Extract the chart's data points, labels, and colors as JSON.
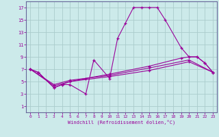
{
  "background_color": "#cceaea",
  "grid_color": "#aacccc",
  "line_color": "#990099",
  "spine_color": "#666699",
  "xlim": [
    -0.5,
    23.5
  ],
  "ylim": [
    0,
    18
  ],
  "xticks": [
    0,
    1,
    2,
    3,
    4,
    5,
    6,
    7,
    8,
    9,
    10,
    11,
    12,
    13,
    14,
    15,
    16,
    17,
    18,
    19,
    20,
    21,
    22,
    23
  ],
  "yticks": [
    1,
    3,
    5,
    7,
    9,
    11,
    13,
    15,
    17
  ],
  "xlabel": "Windchill (Refroidissement éolien,°C)",
  "series": [
    {
      "x": [
        0,
        1,
        3,
        4,
        5,
        7,
        8,
        10,
        11,
        12,
        13,
        14,
        15,
        16,
        17,
        19,
        20,
        21,
        22,
        23
      ],
      "y": [
        7,
        6.5,
        4,
        4.5,
        4.5,
        3,
        8.5,
        5.5,
        12,
        14.5,
        17,
        17,
        17,
        17,
        15,
        10.5,
        9,
        9,
        8,
        6.5
      ]
    },
    {
      "x": [
        0,
        1,
        3,
        4,
        5,
        7,
        10,
        15,
        19,
        20,
        21,
        22,
        23
      ],
      "y": [
        7,
        6.5,
        4,
        4.5,
        5,
        5.5,
        6.2,
        7.5,
        8.8,
        9,
        9,
        8,
        6.5
      ]
    },
    {
      "x": [
        0,
        3,
        5,
        10,
        15,
        20,
        23
      ],
      "y": [
        7,
        4.5,
        5.2,
        6.0,
        7.2,
        8.5,
        6.5
      ]
    },
    {
      "x": [
        0,
        3,
        5,
        10,
        15,
        20,
        23
      ],
      "y": [
        7,
        4.3,
        5.0,
        5.8,
        6.8,
        8.2,
        6.5
      ]
    }
  ]
}
